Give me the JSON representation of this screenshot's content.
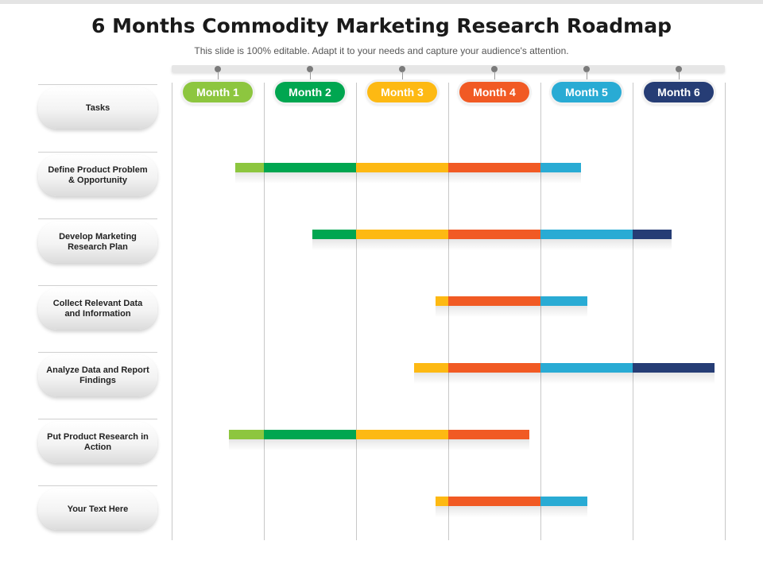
{
  "title": "6 Months Commodity Marketing Research Roadmap",
  "subtitle": "This slide is 100% editable. Adapt it to your needs and capture your audience's attention.",
  "header_label": "Tasks",
  "months": [
    {
      "label": "Month 1",
      "color": "#8dc63f"
    },
    {
      "label": "Month 2",
      "color": "#00a650"
    },
    {
      "label": "Month 3",
      "color": "#fdb913"
    },
    {
      "label": "Month 4",
      "color": "#f15a24"
    },
    {
      "label": "Month 5",
      "color": "#29abd4"
    },
    {
      "label": "Month 6",
      "color": "#263d75"
    }
  ],
  "tasks": [
    {
      "label": "Define Product Problem & Opportunity",
      "start": 0.69,
      "end": 4.44
    },
    {
      "label": "Develop Marketing Research Plan",
      "start": 1.53,
      "end": 5.42
    },
    {
      "label": "Collect Relevant Data and Information",
      "start": 2.86,
      "end": 4.51
    },
    {
      "label": "Analyze Data and Report Findings",
      "start": 2.63,
      "end": 5.89
    },
    {
      "label": "Put Product Research in Action",
      "start": 0.62,
      "end": 3.88
    },
    {
      "label": "Your Text Here",
      "start": 2.86,
      "end": 4.51
    }
  ]
}
